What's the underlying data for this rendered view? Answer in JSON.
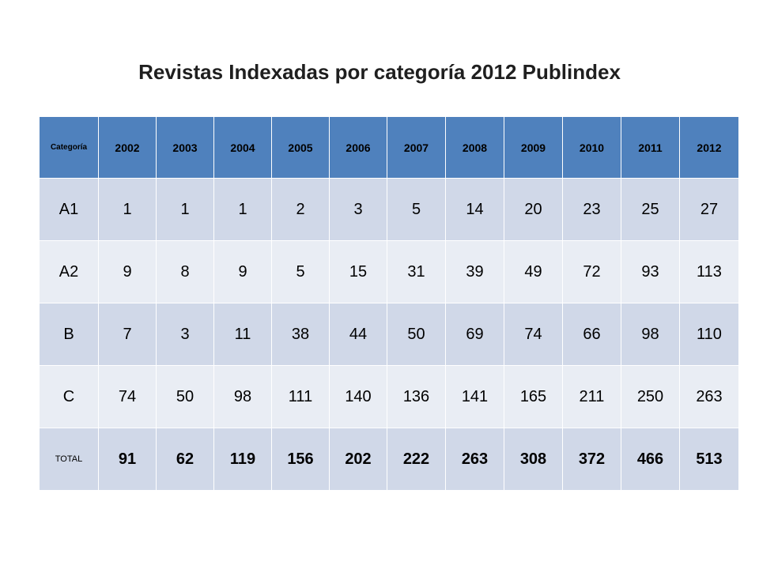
{
  "chart_data": {
    "type": "table",
    "title": "Revistas Indexadas por categoría 2012 Publindex",
    "header_label": "Categoría",
    "years": [
      "2002",
      "2003",
      "2004",
      "2005",
      "2006",
      "2007",
      "2008",
      "2009",
      "2010",
      "2011",
      "2012"
    ],
    "rows": [
      {
        "label": "A1",
        "values": [
          1,
          1,
          1,
          2,
          3,
          5,
          14,
          20,
          23,
          25,
          27
        ]
      },
      {
        "label": "A2",
        "values": [
          9,
          8,
          9,
          5,
          15,
          31,
          39,
          49,
          72,
          93,
          113
        ]
      },
      {
        "label": "B",
        "values": [
          7,
          3,
          11,
          38,
          44,
          50,
          69,
          74,
          66,
          98,
          110
        ]
      },
      {
        "label": "C",
        "values": [
          74,
          50,
          98,
          111,
          140,
          136,
          141,
          165,
          211,
          250,
          263
        ]
      },
      {
        "label": "TOTAL",
        "values": [
          91,
          62,
          119,
          156,
          202,
          222,
          263,
          308,
          372,
          466,
          513
        ]
      }
    ]
  },
  "colors": {
    "header": "#4f81bd",
    "band_odd": "#d0d8e8",
    "band_even": "#e9edf4"
  }
}
